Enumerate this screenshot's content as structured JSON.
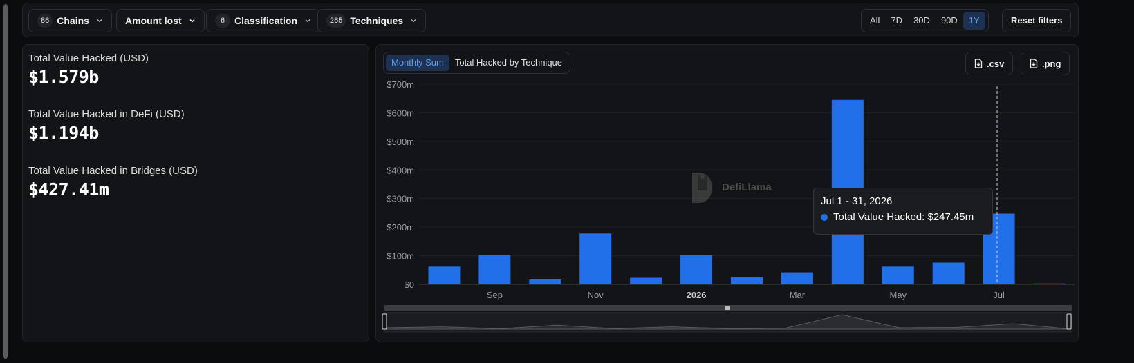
{
  "filters": {
    "chains": {
      "count": "86",
      "label": "Chains"
    },
    "amount": {
      "label": "Amount lost"
    },
    "classification": {
      "count": "6",
      "label": "Classification"
    },
    "techniques": {
      "count": "265",
      "label": "Techniques"
    }
  },
  "ranges": [
    "All",
    "7D",
    "30D",
    "90D",
    "1Y"
  ],
  "active_range": "1Y",
  "reset_label": "Reset filters",
  "stats": [
    {
      "label": "Total Value Hacked (USD)",
      "value": "$1.579b"
    },
    {
      "label": "Total Value Hacked in DeFi (USD)",
      "value": "$1.194b"
    },
    {
      "label": "Total Value Hacked in Bridges (USD)",
      "value": "$427.41m"
    }
  ],
  "chart_tabs": [
    "Monthly Sum",
    "Total Hacked by Technique"
  ],
  "downloads": {
    "csv": ".csv",
    "png": ".png"
  },
  "watermark": "DefiLlama",
  "tooltip": {
    "date": "Jul 1 - 31, 2026",
    "series": "Total Value Hacked",
    "value": "$247.45m"
  },
  "colors": {
    "bar": "#2170ea",
    "accent": "#5e9cf2",
    "active_bg": "#1d3252"
  },
  "chart_data": {
    "type": "bar",
    "categories": [
      "2025-08",
      "2025-09",
      "2025-10",
      "2025-11",
      "2025-12",
      "2026-01",
      "2026-02",
      "2026-03",
      "2026-04",
      "2026-05",
      "2026-06",
      "2026-07",
      "2026-08"
    ],
    "series": [
      {
        "name": "Total Value Hacked",
        "values": [
          62,
          103,
          17,
          178,
          23,
          102,
          25,
          42,
          645,
          62,
          76,
          247.45,
          3
        ]
      }
    ],
    "unit": "m",
    "yticks": [
      "$0",
      "$100m",
      "$200m",
      "$300m",
      "$400m",
      "$500m",
      "$600m",
      "$700m"
    ],
    "xticks": [
      {
        "label": "Sep",
        "index": 1
      },
      {
        "label": "Nov",
        "index": 3
      },
      {
        "label": "2026",
        "index": 5
      },
      {
        "label": "Mar",
        "index": 7
      },
      {
        "label": "May",
        "index": 9
      },
      {
        "label": "Jul",
        "index": 11
      }
    ],
    "ylim": [
      0,
      700
    ],
    "grid": true
  }
}
